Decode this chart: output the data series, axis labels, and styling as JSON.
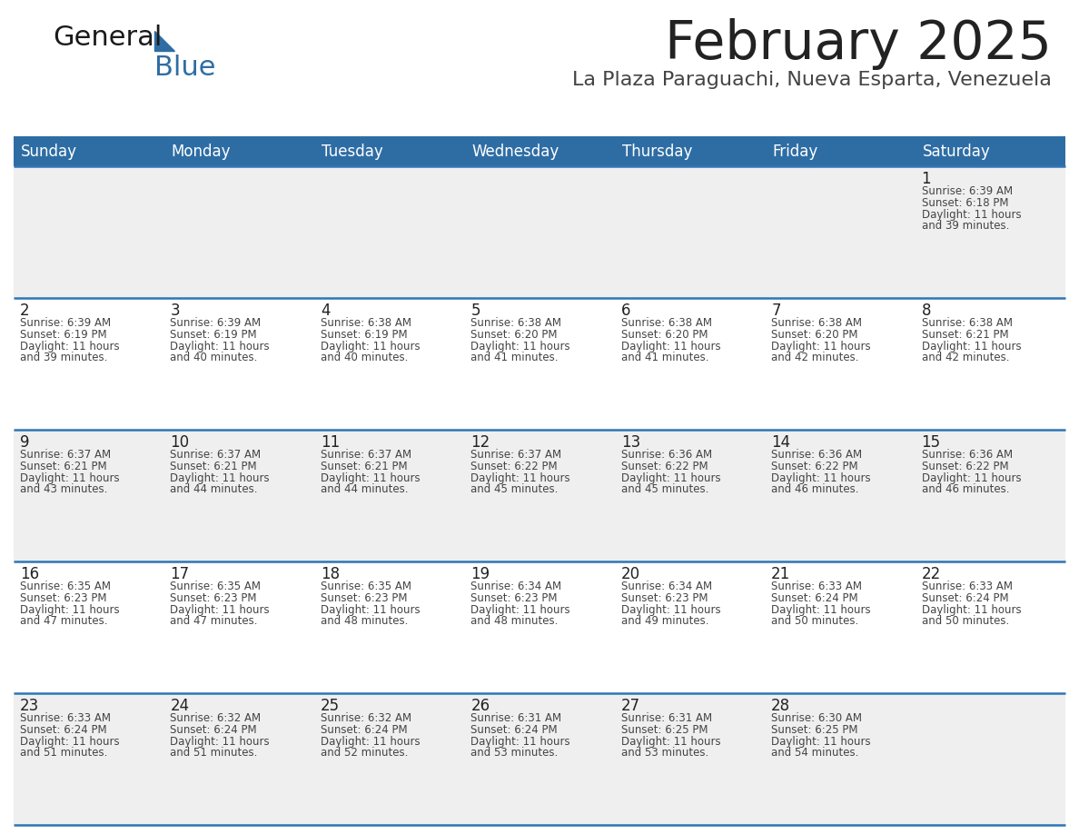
{
  "title": "February 2025",
  "subtitle": "La Plaza Paraguachi, Nueva Esparta, Venezuela",
  "header_bg_color": "#2E6DA4",
  "header_text_color": "#FFFFFF",
  "day_names": [
    "Sunday",
    "Monday",
    "Tuesday",
    "Wednesday",
    "Thursday",
    "Friday",
    "Saturday"
  ],
  "bg_color": "#FFFFFF",
  "cell_bg_light": "#EFEFEF",
  "cell_bg_white": "#FFFFFF",
  "separator_color": "#2E75B6",
  "day_num_color": "#222222",
  "cell_text_color": "#444444",
  "title_color": "#222222",
  "subtitle_color": "#444444",
  "calendar": [
    [
      null,
      null,
      null,
      null,
      null,
      null,
      {
        "day": 1,
        "sunrise": "6:39 AM",
        "sunset": "6:18 PM",
        "daylight": "11 hours and 39 minutes"
      }
    ],
    [
      {
        "day": 2,
        "sunrise": "6:39 AM",
        "sunset": "6:19 PM",
        "daylight": "11 hours and 39 minutes"
      },
      {
        "day": 3,
        "sunrise": "6:39 AM",
        "sunset": "6:19 PM",
        "daylight": "11 hours and 40 minutes"
      },
      {
        "day": 4,
        "sunrise": "6:38 AM",
        "sunset": "6:19 PM",
        "daylight": "11 hours and 40 minutes"
      },
      {
        "day": 5,
        "sunrise": "6:38 AM",
        "sunset": "6:20 PM",
        "daylight": "11 hours and 41 minutes"
      },
      {
        "day": 6,
        "sunrise": "6:38 AM",
        "sunset": "6:20 PM",
        "daylight": "11 hours and 41 minutes"
      },
      {
        "day": 7,
        "sunrise": "6:38 AM",
        "sunset": "6:20 PM",
        "daylight": "11 hours and 42 minutes"
      },
      {
        "day": 8,
        "sunrise": "6:38 AM",
        "sunset": "6:21 PM",
        "daylight": "11 hours and 42 minutes"
      }
    ],
    [
      {
        "day": 9,
        "sunrise": "6:37 AM",
        "sunset": "6:21 PM",
        "daylight": "11 hours and 43 minutes"
      },
      {
        "day": 10,
        "sunrise": "6:37 AM",
        "sunset": "6:21 PM",
        "daylight": "11 hours and 44 minutes"
      },
      {
        "day": 11,
        "sunrise": "6:37 AM",
        "sunset": "6:21 PM",
        "daylight": "11 hours and 44 minutes"
      },
      {
        "day": 12,
        "sunrise": "6:37 AM",
        "sunset": "6:22 PM",
        "daylight": "11 hours and 45 minutes"
      },
      {
        "day": 13,
        "sunrise": "6:36 AM",
        "sunset": "6:22 PM",
        "daylight": "11 hours and 45 minutes"
      },
      {
        "day": 14,
        "sunrise": "6:36 AM",
        "sunset": "6:22 PM",
        "daylight": "11 hours and 46 minutes"
      },
      {
        "day": 15,
        "sunrise": "6:36 AM",
        "sunset": "6:22 PM",
        "daylight": "11 hours and 46 minutes"
      }
    ],
    [
      {
        "day": 16,
        "sunrise": "6:35 AM",
        "sunset": "6:23 PM",
        "daylight": "11 hours and 47 minutes"
      },
      {
        "day": 17,
        "sunrise": "6:35 AM",
        "sunset": "6:23 PM",
        "daylight": "11 hours and 47 minutes"
      },
      {
        "day": 18,
        "sunrise": "6:35 AM",
        "sunset": "6:23 PM",
        "daylight": "11 hours and 48 minutes"
      },
      {
        "day": 19,
        "sunrise": "6:34 AM",
        "sunset": "6:23 PM",
        "daylight": "11 hours and 48 minutes"
      },
      {
        "day": 20,
        "sunrise": "6:34 AM",
        "sunset": "6:23 PM",
        "daylight": "11 hours and 49 minutes"
      },
      {
        "day": 21,
        "sunrise": "6:33 AM",
        "sunset": "6:24 PM",
        "daylight": "11 hours and 50 minutes"
      },
      {
        "day": 22,
        "sunrise": "6:33 AM",
        "sunset": "6:24 PM",
        "daylight": "11 hours and 50 minutes"
      }
    ],
    [
      {
        "day": 23,
        "sunrise": "6:33 AM",
        "sunset": "6:24 PM",
        "daylight": "11 hours and 51 minutes"
      },
      {
        "day": 24,
        "sunrise": "6:32 AM",
        "sunset": "6:24 PM",
        "daylight": "11 hours and 51 minutes"
      },
      {
        "day": 25,
        "sunrise": "6:32 AM",
        "sunset": "6:24 PM",
        "daylight": "11 hours and 52 minutes"
      },
      {
        "day": 26,
        "sunrise": "6:31 AM",
        "sunset": "6:24 PM",
        "daylight": "11 hours and 53 minutes"
      },
      {
        "day": 27,
        "sunrise": "6:31 AM",
        "sunset": "6:25 PM",
        "daylight": "11 hours and 53 minutes"
      },
      {
        "day": 28,
        "sunrise": "6:30 AM",
        "sunset": "6:25 PM",
        "daylight": "11 hours and 54 minutes"
      },
      null
    ]
  ],
  "logo_text1": "General",
  "logo_text2": "Blue",
  "logo_color1": "#1a1a1a",
  "logo_color2": "#2E6DA4",
  "logo_triangle_color": "#2E6DA4",
  "fig_width": 11.88,
  "fig_height": 9.18,
  "dpi": 100
}
